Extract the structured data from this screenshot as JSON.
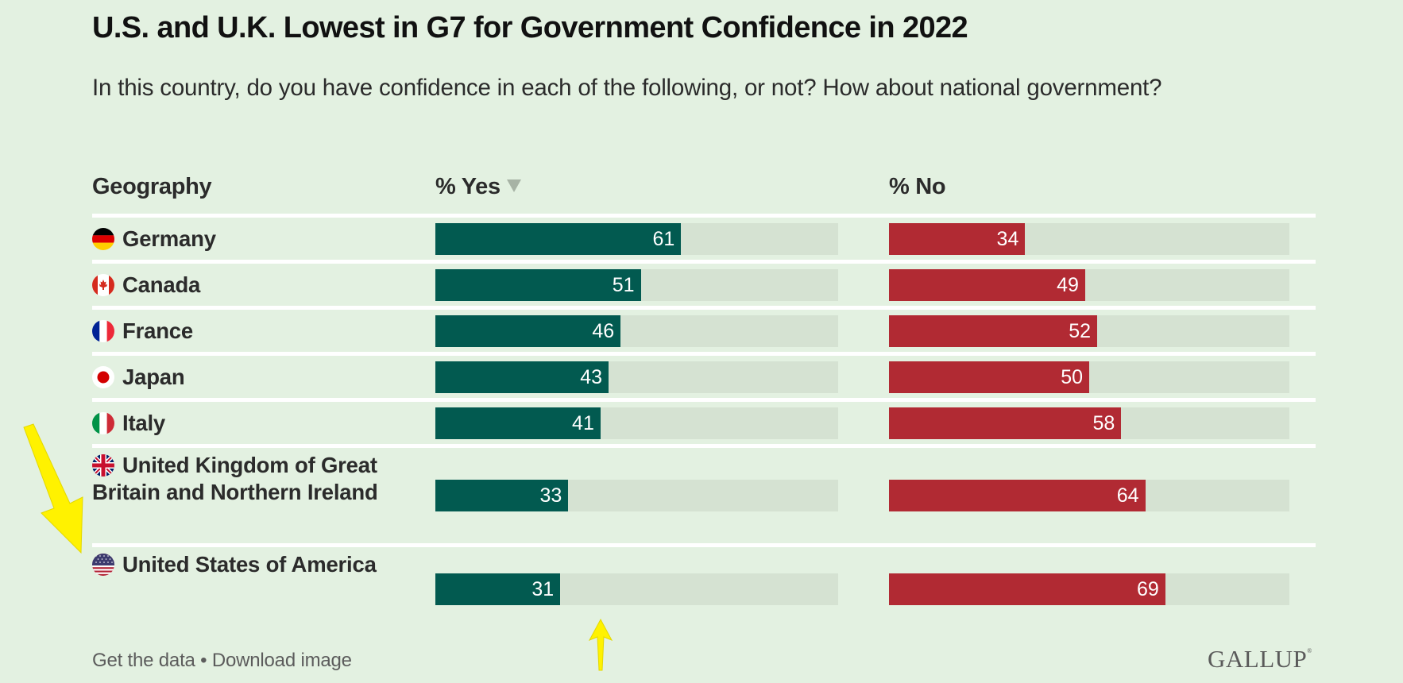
{
  "header": {
    "title": "U.S. and U.K. Lowest in G7 for Government Confidence in 2022",
    "subtitle": "In this country, do you have confidence in each of the following, or not? How about national government?"
  },
  "columns": {
    "geography": "Geography",
    "yes": "% Yes",
    "no": "% No",
    "sort_icon": "sort-descending-triangle-icon"
  },
  "footer": {
    "get_data": "Get the data",
    "separator": "•",
    "download": "Download image",
    "logo": "GALLUP",
    "logo_mark": "®"
  },
  "colors": {
    "background": "#e3f1e1",
    "yes": "#025a50",
    "no": "#b12a33",
    "track": "#d5e2d2",
    "annotation": "#fff200"
  },
  "annotations": [
    {
      "type": "arrow",
      "points_to": "United States of America row label"
    },
    {
      "type": "arrow",
      "points_to": "United States % Yes value (31)"
    }
  ],
  "chart_data": {
    "type": "bar",
    "orientation": "horizontal",
    "title": "U.S. and U.K. Lowest in G7 for Government Confidence in 2022",
    "subtitle": "In this country, do you have confidence in each of the following, or not? How about national government?",
    "xlabel": "",
    "ylabel": "Geography",
    "xlim": [
      0,
      100
    ],
    "sorted_by": "% Yes descending",
    "categories": [
      "Germany",
      "Canada",
      "France",
      "Japan",
      "Italy",
      "United Kingdom of Great Britain and Northern Ireland",
      "United States of America"
    ],
    "flags": [
      "germany-flag-icon",
      "canada-flag-icon",
      "france-flag-icon",
      "japan-flag-icon",
      "italy-flag-icon",
      "uk-flag-icon",
      "usa-flag-icon"
    ],
    "series": [
      {
        "name": "% Yes",
        "values": [
          61,
          51,
          46,
          43,
          41,
          33,
          31
        ]
      },
      {
        "name": "% No",
        "values": [
          34,
          49,
          52,
          50,
          58,
          64,
          69
        ]
      }
    ],
    "legend": "column-headers"
  }
}
